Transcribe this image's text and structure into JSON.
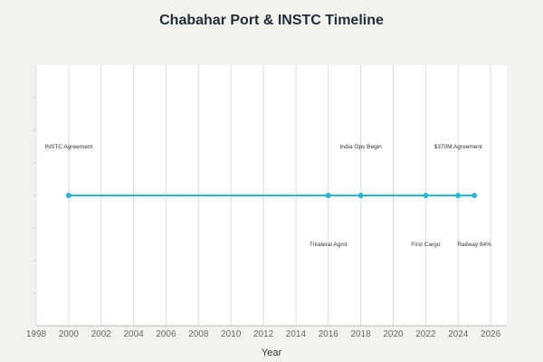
{
  "chart_data": {
    "type": "line",
    "title": "Chabahar Port & INSTC Timeline",
    "xlabel": "Year",
    "ylabel": "",
    "xlim": [
      1998,
      2027
    ],
    "xticks": [
      1998,
      2000,
      2002,
      2004,
      2006,
      2008,
      2010,
      2012,
      2014,
      2016,
      2018,
      2020,
      2022,
      2024,
      2026
    ],
    "grid": true,
    "colors": {
      "line": "#2cb5d0",
      "grid": "#dcdcdc",
      "background": "#ffffff"
    },
    "events": [
      {
        "x": 2000,
        "label": "INSTC Agreement",
        "position": "above"
      },
      {
        "x": 2016,
        "label": "Trilateral Agmt",
        "position": "below"
      },
      {
        "x": 2018,
        "label": "India Ops Begin",
        "position": "above"
      },
      {
        "x": 2022,
        "label": "First Cargo",
        "position": "below"
      },
      {
        "x": 2024,
        "label": "$370M Agreement",
        "position": "above"
      },
      {
        "x": 2025,
        "label": "Railway 84%",
        "position": "below"
      }
    ]
  }
}
